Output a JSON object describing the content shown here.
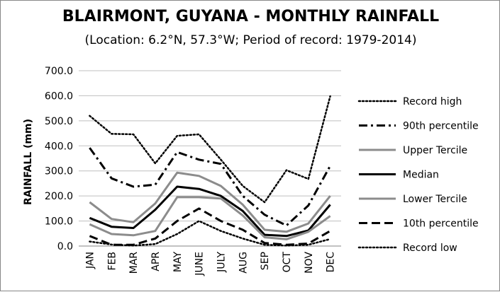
{
  "chart_data": {
    "type": "line",
    "title": "BLAIRMONT, GUYANA - MONTHLY RAINFALL",
    "subtitle": "(Location: 6.2°N, 57.3°W; Period of record: 1979-2014)",
    "ylabel": "RAINFALL (mm)",
    "xlabel": "",
    "ylim": [
      0,
      700
    ],
    "ytick_values": [
      0,
      100,
      200,
      300,
      400,
      500,
      600,
      700
    ],
    "yticks": [
      "0.0",
      "100.0",
      "200.0",
      "300.0",
      "400.0",
      "500.0",
      "600.0",
      "700.0"
    ],
    "categories": [
      "JAN",
      "FEB",
      "MAR",
      "APR",
      "MAY",
      "JUNE",
      "JULY",
      "AUG",
      "SEP",
      "OCT",
      "NOV",
      "DEC"
    ],
    "grid": true,
    "legend_position": "right",
    "series": [
      {
        "name": "Record high",
        "style": "dotted",
        "color": "#000000",
        "values": [
          520,
          448,
          446,
          330,
          440,
          446,
          345,
          240,
          175,
          303,
          268,
          598
        ]
      },
      {
        "name": "90th percentile",
        "style": "dashdot",
        "color": "#000000",
        "values": [
          392,
          270,
          237,
          245,
          375,
          345,
          328,
          200,
          125,
          82,
          162,
          320
        ]
      },
      {
        "name": "Upper Tercile",
        "style": "solid",
        "color": "#8c8c8c",
        "values": [
          175,
          108,
          95,
          170,
          293,
          280,
          240,
          165,
          65,
          57,
          90,
          200
        ]
      },
      {
        "name": "Median",
        "style": "solid",
        "color": "#000000",
        "values": [
          112,
          77,
          72,
          145,
          237,
          228,
          200,
          140,
          45,
          40,
          62,
          165
        ]
      },
      {
        "name": "Lower Tercile",
        "style": "solid",
        "color": "#8c8c8c",
        "values": [
          87,
          48,
          43,
          60,
          195,
          195,
          190,
          122,
          35,
          27,
          57,
          120
        ]
      },
      {
        "name": "10th percentile",
        "style": "dashdash",
        "color": "#000000",
        "values": [
          40,
          5,
          5,
          30,
          100,
          150,
          100,
          65,
          12,
          5,
          10,
          60
        ]
      },
      {
        "name": "Record low",
        "style": "dotted",
        "color": "#000000",
        "values": [
          18,
          6,
          2,
          8,
          48,
          100,
          60,
          30,
          5,
          2,
          5,
          28
        ]
      }
    ]
  }
}
